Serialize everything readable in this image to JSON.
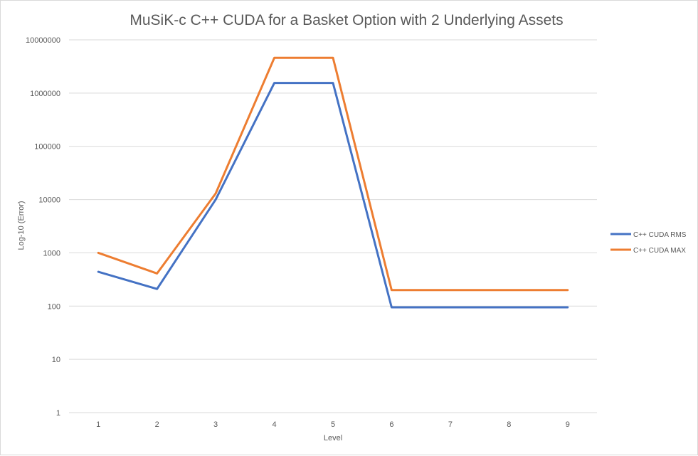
{
  "chart_data": {
    "type": "line",
    "title": "MuSiK-c C++ CUDA for a Basket Option with 2 Underlying Assets",
    "xlabel": "Level",
    "ylabel": "Log-10 (Error)",
    "yscale": "log",
    "ylim": [
      1,
      10000000
    ],
    "y_tick_labels": [
      "1",
      "10",
      "100",
      "1000",
      "10000",
      "100000",
      "1000000",
      "10000000"
    ],
    "x": [
      1,
      2,
      3,
      4,
      5,
      6,
      7,
      8,
      9
    ],
    "x_tick_labels": [
      "1",
      "2",
      "3",
      "4",
      "5",
      "6",
      "7",
      "8",
      "9"
    ],
    "grid": true,
    "legend_position": "right",
    "series": [
      {
        "name": "C++ CUDA RMS",
        "color": "#4472c4",
        "values": [
          440,
          210,
          10000,
          1550000,
          1550000,
          95,
          95,
          95,
          95
        ]
      },
      {
        "name": "C++ CUDA MAX",
        "color": "#ed7d31",
        "values": [
          1000,
          410,
          13000,
          4600000,
          4600000,
          200,
          200,
          200,
          200
        ]
      }
    ]
  }
}
